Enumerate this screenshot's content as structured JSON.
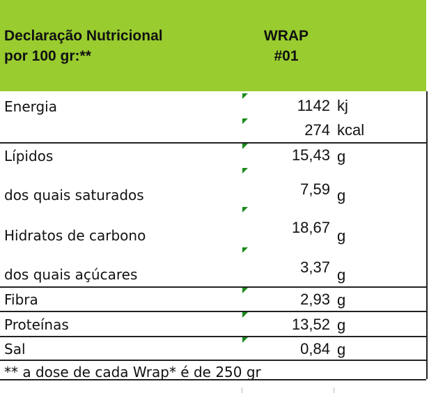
{
  "header": {
    "title_line1": "Declaração Nutricional",
    "title_line2": "por 100 gr:**",
    "product_line1": "WRAP",
    "product_line2": "#01"
  },
  "rows": [
    {
      "label": "Energia",
      "value": "1142",
      "unit": "kj"
    },
    {
      "label": "",
      "value": "274",
      "unit": "kcal"
    },
    {
      "label": "Lípidos",
      "value": "15,43",
      "unit": "g"
    },
    {
      "label": "dos quais saturados",
      "value": "7,59",
      "unit": "g"
    },
    {
      "label": "Hidratos de carbono",
      "value": "18,67",
      "unit": "g"
    },
    {
      "label": "dos quais açúcares",
      "value": "3,37",
      "unit": "g"
    },
    {
      "label": "Fibra",
      "value": "2,93",
      "unit": "g"
    },
    {
      "label": "Proteínas",
      "value": "13,52",
      "unit": "g"
    },
    {
      "label": "Sal",
      "value": "0,84",
      "unit": "g"
    }
  ],
  "footnote": "** a dose de cada Wrap* é de 250 gr",
  "colors": {
    "header_bg": "#99cc2f",
    "marker": "#1a8a1a"
  }
}
